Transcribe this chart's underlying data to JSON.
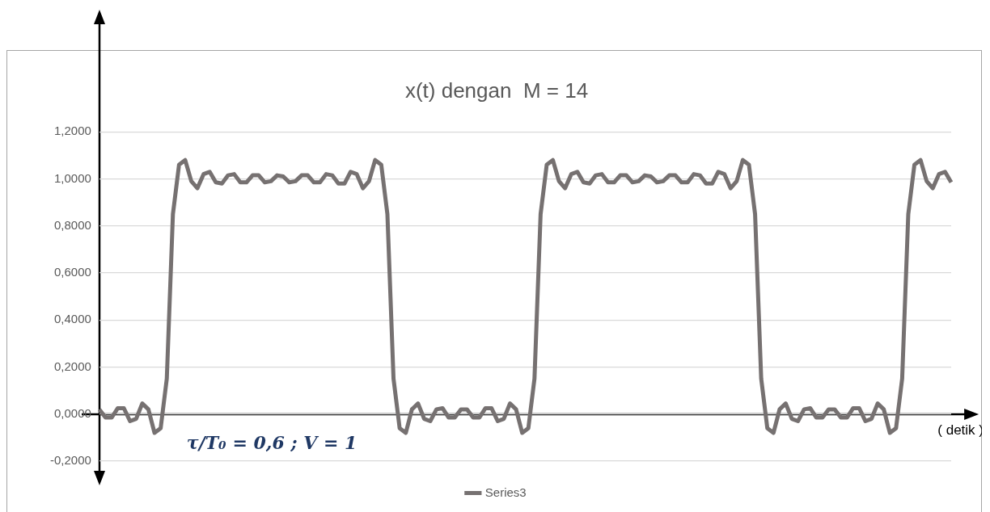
{
  "chart_data": {
    "type": "line",
    "title": "x(t) dengan  M = 14",
    "xlabel": "( detik )",
    "annotations": [
      "τ/T₀ = 0,6 ; V = 1"
    ],
    "categories": [
      null,
      null,
      null,
      null,
      null,
      null,
      null,
      null,
      null,
      null,
      null,
      null,
      null,
      null,
      null,
      null,
      null,
      null,
      null,
      null,
      null,
      null,
      null,
      null,
      null,
      null,
      null,
      null,
      null,
      null,
      null,
      null,
      null,
      null,
      null,
      null,
      null,
      null,
      null,
      null,
      null,
      null,
      null,
      null,
      null,
      null,
      null,
      null,
      null,
      null,
      null,
      null,
      null,
      null,
      null,
      null,
      null,
      null,
      null,
      null,
      null,
      null,
      null,
      null,
      null,
      null,
      null,
      null,
      null,
      null,
      null,
      null,
      null,
      null,
      null,
      null,
      null,
      null,
      null,
      null,
      null,
      null,
      null,
      null,
      null,
      null,
      null,
      null,
      null,
      null,
      null,
      null,
      null,
      null,
      null,
      null,
      null,
      null,
      null,
      null,
      null,
      null,
      null,
      null,
      null,
      null,
      null,
      null,
      null,
      null,
      null,
      null,
      null,
      null,
      null,
      null,
      null,
      null,
      null,
      null,
      null,
      null,
      null,
      null,
      null,
      null,
      null,
      null,
      null,
      null,
      null,
      null,
      null,
      null,
      null,
      null,
      null,
      null,
      null,
      null
    ],
    "series": [
      {
        "name": "Series3",
        "color": "#767171",
        "values": [
          0.02,
          -0.015,
          -0.015,
          0.025,
          0.025,
          -0.03,
          -0.02,
          0.045,
          0.02,
          -0.08,
          -0.06,
          0.15,
          0.85,
          1.06,
          1.08,
          0.99,
          0.96,
          1.02,
          1.03,
          0.985,
          0.98,
          1.015,
          1.02,
          0.985,
          0.985,
          1.015,
          1.015,
          0.985,
          0.99,
          1.015,
          1.01,
          0.985,
          0.99,
          1.015,
          1.015,
          0.985,
          0.985,
          1.02,
          1.015,
          0.98,
          0.98,
          1.03,
          1.02,
          0.96,
          0.99,
          1.08,
          1.06,
          0.85,
          0.15,
          -0.06,
          -0.08,
          0.02,
          0.045,
          -0.02,
          -0.03,
          0.02,
          0.025,
          -0.015,
          -0.015,
          0.02,
          0.02,
          -0.015,
          -0.015,
          0.025,
          0.025,
          -0.03,
          -0.02,
          0.045,
          0.02,
          -0.08,
          -0.06,
          0.15,
          0.85,
          1.06,
          1.08,
          0.99,
          0.96,
          1.02,
          1.03,
          0.985,
          0.98,
          1.015,
          1.02,
          0.985,
          0.985,
          1.015,
          1.015,
          0.985,
          0.99,
          1.015,
          1.01,
          0.985,
          0.99,
          1.015,
          1.015,
          0.985,
          0.985,
          1.02,
          1.015,
          0.98,
          0.98,
          1.03,
          1.02,
          0.96,
          0.99,
          1.08,
          1.06,
          0.85,
          0.15,
          -0.06,
          -0.08,
          0.02,
          0.045,
          -0.02,
          -0.03,
          0.02,
          0.025,
          -0.015,
          -0.015,
          0.02,
          0.02,
          -0.015,
          -0.015,
          0.025,
          0.025,
          -0.03,
          -0.02,
          0.045,
          0.02,
          -0.08,
          -0.06,
          0.15,
          0.85,
          1.06,
          1.08,
          0.99,
          0.96,
          1.02,
          1.03,
          0.985
        ]
      }
    ],
    "ylim": [
      -0.2,
      1.2
    ],
    "yticks": [
      {
        "value": -0.2,
        "label": "-0,2000"
      },
      {
        "value": 0,
        "label": "0,0000"
      },
      {
        "value": 0.2,
        "label": "0,2000"
      },
      {
        "value": 0.4,
        "label": "0,4000"
      },
      {
        "value": 0.6,
        "label": "0,6000"
      },
      {
        "value": 0.8,
        "label": "0,8000"
      },
      {
        "value": 1,
        "label": "1,0000"
      },
      {
        "value": 1.2,
        "label": "1,2000"
      }
    ],
    "grid": "y",
    "legend": "bottom",
    "marker": "none",
    "line_style": "solid",
    "tick_labels": "y"
  }
}
